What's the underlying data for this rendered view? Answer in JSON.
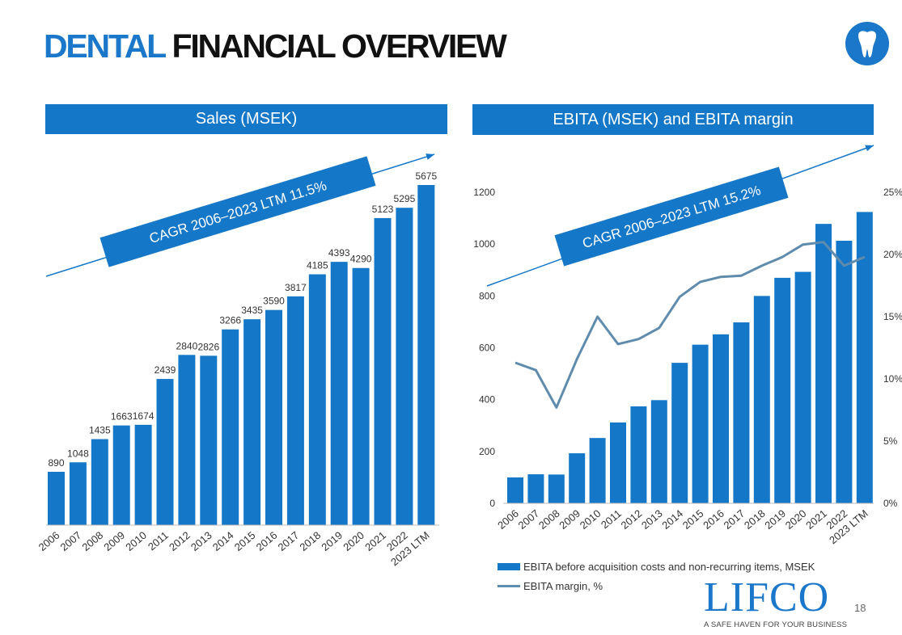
{
  "header": {
    "title_accent": "DENTAL",
    "title_main": "FINANCIAL OVERVIEW",
    "logo_icon": "tooth-icon"
  },
  "colors": {
    "bar": "#1577c8",
    "banner": "#1577c8",
    "line": "#5f8bad",
    "accent": "#1a77c9"
  },
  "chart_data": [
    {
      "type": "bar",
      "title": "Sales (MSEK)",
      "categories": [
        "2006",
        "2007",
        "2008",
        "2009",
        "2010",
        "2011",
        "2012",
        "2013",
        "2014",
        "2015",
        "2016",
        "2017",
        "2018",
        "2019",
        "2020",
        "2021",
        "2022",
        "2023 LTM"
      ],
      "values": [
        890,
        1048,
        1435,
        1663,
        1674,
        2439,
        2840,
        2826,
        3266,
        3435,
        3590,
        3817,
        4185,
        4393,
        4290,
        5123,
        5295,
        5675
      ],
      "ylim": [
        0,
        5675
      ],
      "grid": false,
      "annotation": "CAGR 2006–2023 LTM 11.5%"
    },
    {
      "type": "bar",
      "title": "EBITA (MSEK) and EBITA margin",
      "categories": [
        "2006",
        "2007",
        "2008",
        "2009",
        "2010",
        "2011",
        "2012",
        "2013",
        "2014",
        "2015",
        "2016",
        "2017",
        "2018",
        "2019",
        "2020",
        "2021",
        "2022",
        "2023 LTM"
      ],
      "series": [
        {
          "name": "EBITA before acquisition costs and non-recurring items, MSEK",
          "type": "bar",
          "values": [
            100,
            112,
            111,
            193,
            252,
            312,
            374,
            398,
            542,
            612,
            652,
            698,
            800,
            870,
            893,
            1078,
            1013,
            1124
          ]
        },
        {
          "name": "EBITA margin, %",
          "type": "line",
          "axis": "right",
          "values": [
            11.3,
            10.7,
            7.7,
            11.6,
            15.0,
            12.8,
            13.2,
            14.1,
            16.6,
            17.8,
            18.2,
            18.3,
            19.1,
            19.8,
            20.8,
            21.0,
            19.1,
            19.8
          ]
        }
      ],
      "ylim": [
        0,
        1200
      ],
      "yticks": [
        "0",
        "200",
        "400",
        "600",
        "800",
        "1000",
        "1200"
      ],
      "y2lim": [
        0,
        25
      ],
      "y2ticks": [
        "0%",
        "5%",
        "10%",
        "15%",
        "20%",
        "25%"
      ],
      "grid": false,
      "legend_position": "bottom",
      "annotation": "CAGR 2006–2023 LTM 15.2%"
    }
  ],
  "footer": {
    "brand": "LIFCO",
    "tagline": "A SAFE HAVEN FOR YOUR BUSINESS",
    "page_number": "18"
  }
}
